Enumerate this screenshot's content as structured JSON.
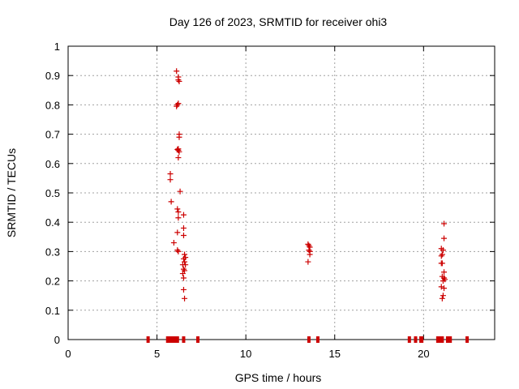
{
  "chart_data": {
    "type": "scatter",
    "title": "Day 126 of 2023, SRMTID for receiver ohi3",
    "xlabel": "GPS time / hours",
    "ylabel": "SRMTID / TECUs",
    "xlim": [
      0,
      24.0
    ],
    "ylim": [
      0,
      1
    ],
    "xticks": [
      0,
      5,
      10,
      15,
      20
    ],
    "xtick_labels": [
      "0",
      "5",
      "10",
      "15",
      "20"
    ],
    "yticks": [
      0,
      0.1,
      0.2,
      0.3,
      0.4,
      0.5,
      0.6,
      0.7,
      0.8,
      0.9,
      1
    ],
    "ytick_labels": [
      "0",
      "0.1",
      "0.2",
      "0.3",
      "0.4",
      "0.5",
      "0.6",
      "0.7",
      "0.8",
      "0.9",
      "1"
    ],
    "grid": true,
    "marker_color": "#cc0000",
    "series": [
      {
        "name": "SRMTID",
        "marker": "plus",
        "points": [
          [
            6.1,
            0.915
          ],
          [
            6.2,
            0.895
          ],
          [
            6.25,
            0.88
          ],
          [
            6.2,
            0.885
          ],
          [
            6.15,
            0.8
          ],
          [
            6.2,
            0.805
          ],
          [
            6.1,
            0.795
          ],
          [
            6.25,
            0.7
          ],
          [
            6.25,
            0.69
          ],
          [
            6.2,
            0.645
          ],
          [
            6.25,
            0.64
          ],
          [
            6.2,
            0.65
          ],
          [
            6.15,
            0.648
          ],
          [
            6.2,
            0.62
          ],
          [
            5.75,
            0.565
          ],
          [
            5.75,
            0.545
          ],
          [
            6.3,
            0.505
          ],
          [
            5.8,
            0.47
          ],
          [
            6.15,
            0.445
          ],
          [
            6.2,
            0.435
          ],
          [
            6.5,
            0.425
          ],
          [
            6.2,
            0.415
          ],
          [
            6.5,
            0.38
          ],
          [
            6.15,
            0.365
          ],
          [
            6.5,
            0.355
          ],
          [
            5.95,
            0.33
          ],
          [
            6.15,
            0.305
          ],
          [
            6.2,
            0.3
          ],
          [
            6.55,
            0.29
          ],
          [
            6.6,
            0.28
          ],
          [
            6.5,
            0.275
          ],
          [
            6.55,
            0.265
          ],
          [
            6.6,
            0.255
          ],
          [
            6.45,
            0.255
          ],
          [
            6.5,
            0.24
          ],
          [
            6.55,
            0.235
          ],
          [
            6.45,
            0.225
          ],
          [
            6.5,
            0.21
          ],
          [
            6.5,
            0.17
          ],
          [
            6.55,
            0.14
          ],
          [
            13.5,
            0.325
          ],
          [
            13.55,
            0.32
          ],
          [
            13.6,
            0.315
          ],
          [
            13.55,
            0.305
          ],
          [
            13.6,
            0.3
          ],
          [
            13.6,
            0.29
          ],
          [
            13.5,
            0.265
          ],
          [
            21.15,
            0.395
          ],
          [
            21.15,
            0.345
          ],
          [
            21.0,
            0.31
          ],
          [
            21.1,
            0.305
          ],
          [
            21.05,
            0.29
          ],
          [
            21.0,
            0.285
          ],
          [
            21.05,
            0.26
          ],
          [
            21.0,
            0.26
          ],
          [
            21.15,
            0.23
          ],
          [
            21.05,
            0.215
          ],
          [
            21.15,
            0.21
          ],
          [
            21.2,
            0.205
          ],
          [
            21.1,
            0.2
          ],
          [
            21.0,
            0.18
          ],
          [
            21.15,
            0.175
          ],
          [
            21.1,
            0.15
          ],
          [
            21.05,
            0.14
          ]
        ]
      },
      {
        "name": "baseline",
        "marker": "bar",
        "points": [
          [
            4.5,
            0
          ],
          [
            5.6,
            0
          ],
          [
            5.75,
            0
          ],
          [
            5.85,
            0
          ],
          [
            5.95,
            0
          ],
          [
            6.05,
            0
          ],
          [
            6.15,
            0
          ],
          [
            6.5,
            0
          ],
          [
            7.3,
            0
          ],
          [
            13.55,
            0
          ],
          [
            14.05,
            0
          ],
          [
            19.2,
            0
          ],
          [
            19.55,
            0
          ],
          [
            19.85,
            0
          ],
          [
            19.9,
            0
          ],
          [
            20.8,
            0
          ],
          [
            20.9,
            0
          ],
          [
            21.0,
            0
          ],
          [
            21.05,
            0
          ],
          [
            21.35,
            0
          ],
          [
            21.45,
            0
          ],
          [
            21.5,
            0
          ],
          [
            22.45,
            0
          ]
        ]
      }
    ]
  }
}
